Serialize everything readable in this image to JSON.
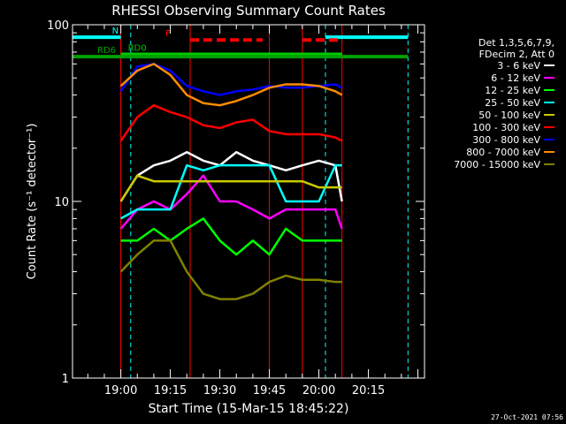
{
  "chart_data": {
    "type": "line",
    "title": "RHESSI Observing Summary Count Rates",
    "xlabel": "Start Time (15-Mar-15 18:45:22)",
    "ylabel": "Count Rate (s⁻¹ detector⁻¹)",
    "y_scale": "log",
    "ylim": [
      1,
      100
    ],
    "xlim": [
      "18:45:22",
      "20:32:00"
    ],
    "x_ticks": [
      "19:00",
      "19:15",
      "19:30",
      "19:45",
      "20:00",
      "20:15"
    ],
    "y_ticks": [
      "1",
      "10",
      "100"
    ],
    "timestamp": "27-Oct-2021 07:56",
    "legend": {
      "position": "right",
      "header": [
        "Det 1,3,5,6,7,9,",
        "FDecim 2, Att 0"
      ],
      "entries": [
        {
          "label": "3 - 6 keV",
          "color": "#ffffff"
        },
        {
          "label": "6 - 12 keV",
          "color": "#ff00ff"
        },
        {
          "label": "12 - 25 keV",
          "color": "#00ff00"
        },
        {
          "label": "25 - 50 keV",
          "color": "#00ffff"
        },
        {
          "label": "50 - 100 keV",
          "color": "#c8c800"
        },
        {
          "label": "100 - 300 keV",
          "color": "#ff0000"
        },
        {
          "label": "300 - 800 keV",
          "color": "#0000ff"
        },
        {
          "label": "800 - 7000 keV",
          "color": "#ff8c00"
        },
        {
          "label": "7000 - 15000 keV",
          "color": "#808000"
        }
      ]
    },
    "flag_bars": [
      {
        "label": "N",
        "color": "#00ffff",
        "value": 85,
        "segments": [
          [
            "18:45:22",
            "19:00:00"
          ],
          [
            "20:02:00",
            "20:27:00"
          ]
        ]
      },
      {
        "label": "F",
        "color": "#ff0000",
        "value": 82,
        "segments": [
          [
            "19:21:00",
            "19:43:00"
          ],
          [
            "19:55:00",
            "20:07:00"
          ]
        ]
      },
      {
        "label": "RD0",
        "color": "#00c800",
        "value": 68,
        "segments": [
          [
            "19:00:00",
            "20:07:00"
          ]
        ]
      },
      {
        "label": "RD6",
        "color": "#00a000",
        "value": 66,
        "segments": [
          [
            "18:45:22",
            "20:27:00"
          ]
        ]
      }
    ],
    "markers": [
      {
        "time": "19:00:00",
        "color": "#ff0000"
      },
      {
        "time": "19:03:00",
        "color": "#00ffff"
      },
      {
        "time": "19:21:00",
        "color": "#ff0000"
      },
      {
        "time": "19:45:00",
        "color": "#ff0000"
      },
      {
        "time": "19:55:00",
        "color": "#ff0000"
      },
      {
        "time": "20:02:00",
        "color": "#00ffff"
      },
      {
        "time": "20:07:00",
        "color": "#ff0000"
      },
      {
        "time": "20:27:00",
        "color": "#00ffff"
      }
    ],
    "x_times": [
      "19:00",
      "19:05",
      "19:10",
      "19:15",
      "19:20",
      "19:25",
      "19:30",
      "19:35",
      "19:40",
      "19:45",
      "19:50",
      "19:55",
      "20:00",
      "20:05",
      "20:07"
    ],
    "series": [
      {
        "name": "3 - 6 keV",
        "color": "#ffffff",
        "values": [
          10,
          14,
          16,
          17,
          19,
          17,
          16,
          19,
          17,
          16,
          15,
          16,
          17,
          16,
          10
        ]
      },
      {
        "name": "6 - 12 keV",
        "color": "#ff00ff",
        "values": [
          7,
          9,
          10,
          9,
          11,
          14,
          10,
          10,
          9,
          8,
          9,
          9,
          9,
          9,
          7
        ]
      },
      {
        "name": "12 - 25 keV",
        "color": "#00ff00",
        "values": [
          6,
          6,
          7,
          6,
          7,
          8,
          6,
          5,
          6,
          5,
          7,
          6,
          6,
          6,
          6
        ]
      },
      {
        "name": "25 - 50 keV",
        "color": "#00ffff",
        "values": [
          8,
          9,
          9,
          9,
          16,
          15,
          16,
          16,
          16,
          16,
          10,
          10,
          10,
          16,
          16
        ]
      },
      {
        "name": "50 - 100 keV",
        "color": "#c8c800",
        "values": [
          10,
          14,
          13,
          13,
          13,
          13,
          13,
          13,
          13,
          13,
          13,
          13,
          12,
          12,
          12
        ]
      },
      {
        "name": "100 - 300 keV",
        "color": "#ff0000",
        "values": [
          22,
          30,
          35,
          32,
          30,
          27,
          26,
          28,
          29,
          25,
          24,
          24,
          24,
          23,
          22
        ]
      },
      {
        "name": "300 - 800 keV",
        "color": "#0000ff",
        "values": [
          42,
          58,
          60,
          55,
          45,
          42,
          40,
          42,
          43,
          45,
          44,
          44,
          45,
          46,
          44
        ]
      },
      {
        "name": "800 - 7000 keV",
        "color": "#ff8c00",
        "values": [
          45,
          55,
          60,
          52,
          40,
          36,
          35,
          37,
          40,
          44,
          46,
          46,
          45,
          42,
          40
        ]
      },
      {
        "name": "7000 - 15000 keV",
        "color": "#808000",
        "values": [
          4,
          5,
          6,
          6,
          4,
          3,
          2.8,
          2.8,
          3,
          3.5,
          3.8,
          3.6,
          3.6,
          3.5,
          3.5
        ]
      }
    ]
  }
}
